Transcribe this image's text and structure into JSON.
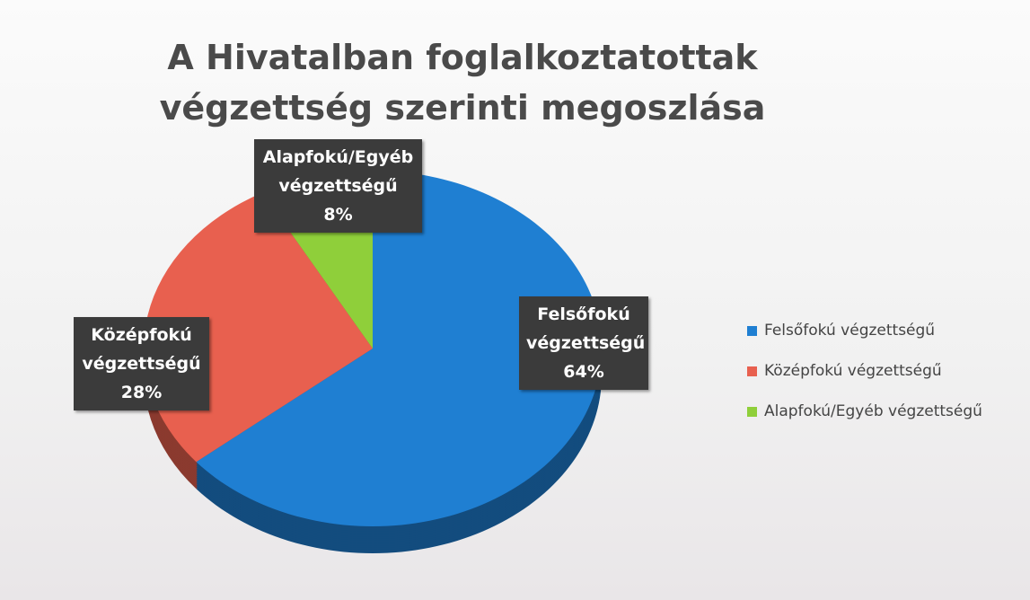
{
  "chart_data": {
    "type": "pie",
    "title": "A Hivatalban foglalkoztatottak végzettség szerinti megoszlása",
    "categories": [
      "Felsőfokú végzettségű",
      "Középfokú végzettségű",
      "Alapfokú/Egyéb végzettségű"
    ],
    "values": [
      64,
      28,
      8
    ],
    "value_labels": [
      "64%",
      "28%",
      "8%"
    ],
    "colors": [
      "#1f7fd2",
      "#e8604f",
      "#8fcf3a"
    ],
    "legend": "right"
  }
}
